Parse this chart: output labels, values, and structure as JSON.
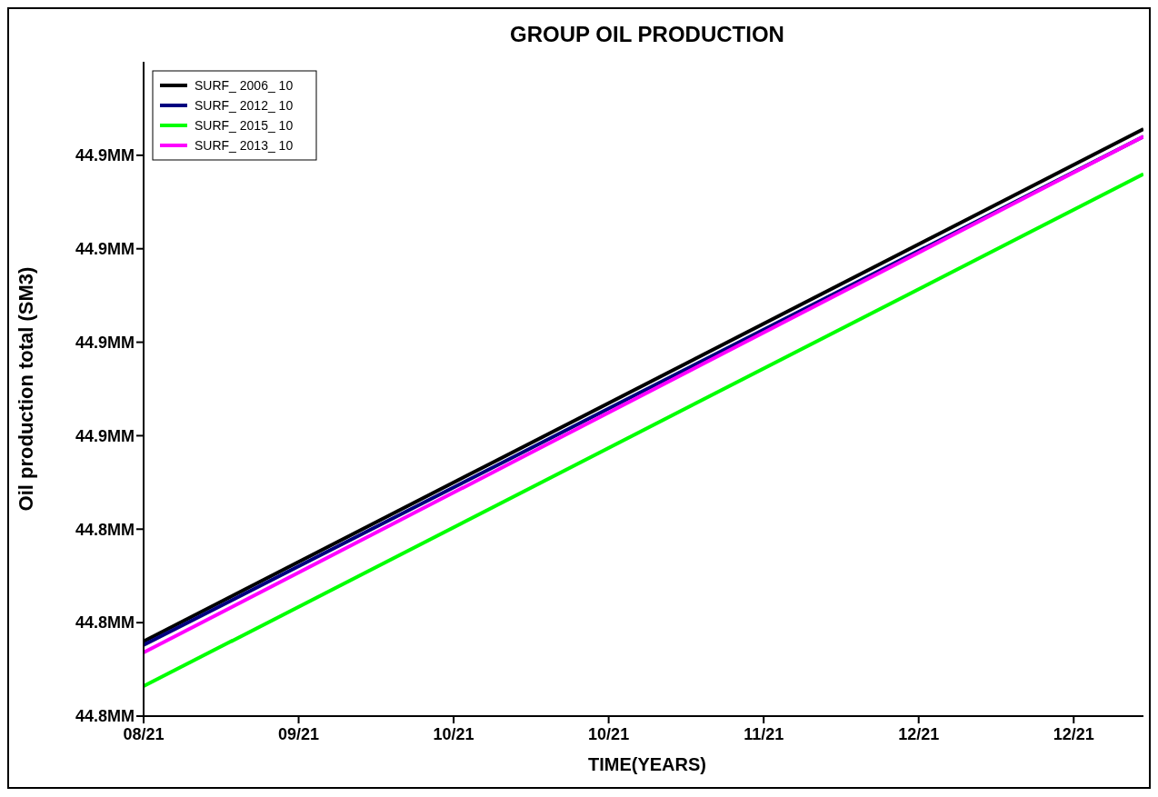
{
  "chart_data": {
    "type": "line",
    "title": "GROUP OIL PRODUCTION",
    "xlabel": "TIME(YEARS)",
    "ylabel": "Oil production total (SM3)",
    "x": [
      "2021-08-25",
      "2022-01-01"
    ],
    "series": [
      {
        "name": "SURF_ 2006_ 10",
        "color": "#000000",
        "values": [
          44.795,
          44.932
        ]
      },
      {
        "name": "SURF_ 2012_ 10",
        "color": "#000080",
        "values": [
          44.794,
          44.93
        ]
      },
      {
        "name": "SURF_ 2015_ 10",
        "color": "#00ff00",
        "values": [
          44.783,
          44.92
        ]
      },
      {
        "name": "SURF_ 2013_ 10",
        "color": "#ff00ff",
        "values": [
          44.792,
          44.93
        ]
      }
    ],
    "xlim": [
      "2021-08-25",
      "2022-01-01"
    ],
    "xticks": [
      {
        "value": "2021-08-25",
        "label": "08/21"
      },
      {
        "value": "2021-09-14",
        "label": "09/21"
      },
      {
        "value": "2021-10-04",
        "label": "10/21"
      },
      {
        "value": "2021-10-24",
        "label": "10/21"
      },
      {
        "value": "2021-11-13",
        "label": "11/21"
      },
      {
        "value": "2021-12-03",
        "label": "12/21"
      },
      {
        "value": "2021-12-23",
        "label": "12/21"
      }
    ],
    "ylim": [
      44.775,
      44.95
    ],
    "yticks": [
      {
        "value": 44.775,
        "label": "44.8MM"
      },
      {
        "value": 44.8,
        "label": "44.8MM"
      },
      {
        "value": 44.825,
        "label": "44.8MM"
      },
      {
        "value": 44.85,
        "label": "44.9MM"
      },
      {
        "value": 44.875,
        "label": "44.9MM"
      },
      {
        "value": 44.9,
        "label": "44.9MM"
      },
      {
        "value": 44.925,
        "label": "44.9MM"
      }
    ],
    "grid": false,
    "legend": "top left",
    "marker": "none",
    "line_style": "solid"
  }
}
